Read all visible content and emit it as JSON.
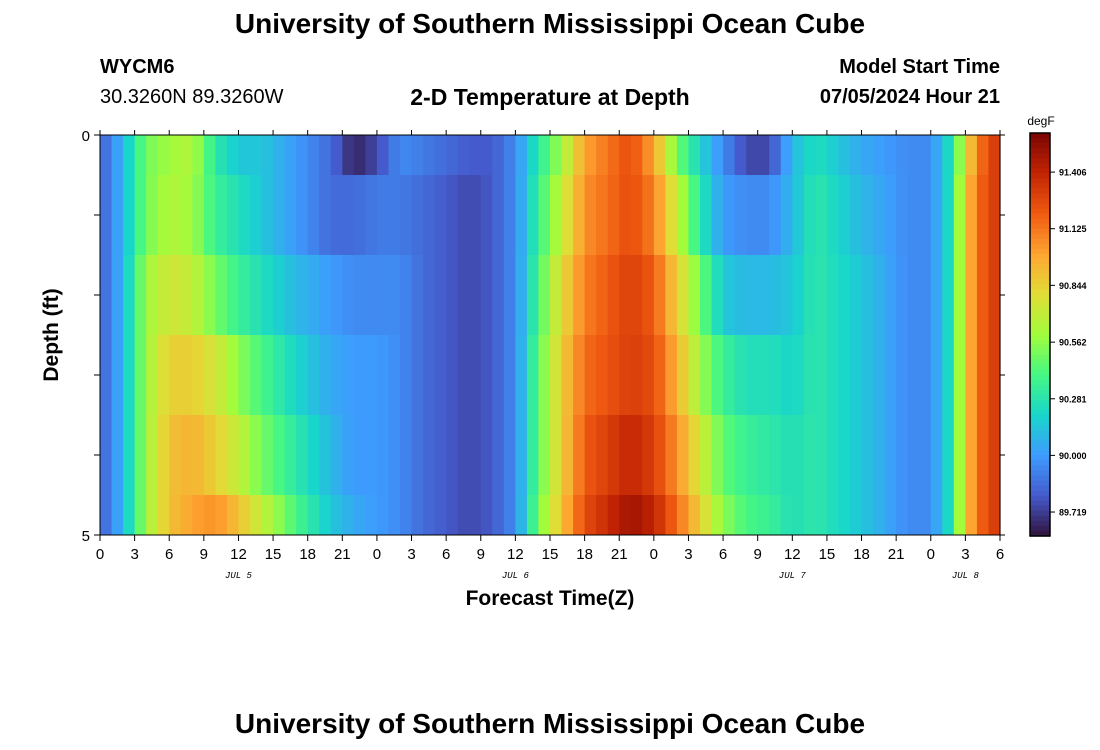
{
  "header": {
    "title": "University of Southern Mississippi Ocean Cube",
    "station": "WYCM6",
    "coords": "30.3260N  89.3260W",
    "subtitle": "2-D Temperature at Depth",
    "model_start_label": "Model Start Time",
    "model_start_value": "07/05/2024 Hour 21"
  },
  "footer": {
    "title": "University of Southern Mississippi Ocean Cube"
  },
  "chart_data": {
    "type": "heatmap",
    "title": "2-D Temperature at Depth",
    "xlabel": "Forecast Time(Z)",
    "ylabel": "Depth (ft)",
    "x_range_hours": [
      0,
      78
    ],
    "x_step_hours": 1,
    "y_range": [
      0,
      5
    ],
    "y_ticks": [
      "0",
      "5"
    ],
    "y_minor_ticks": 4,
    "x_tick_labels": [
      "0",
      "3",
      "6",
      "9",
      "12",
      "15",
      "18",
      "21",
      "0",
      "3",
      "6",
      "9",
      "12",
      "15",
      "18",
      "21",
      "0",
      "3",
      "6",
      "9",
      "12",
      "15",
      "18",
      "21",
      "0",
      "3",
      "6"
    ],
    "day_labels": [
      {
        "text": "JUL 5",
        "hour": 12
      },
      {
        "text": "JUL 6",
        "hour": 36
      },
      {
        "text": "JUL 7",
        "hour": 60
      },
      {
        "text": "JUL 8",
        "hour": 75
      }
    ],
    "colorbar": {
      "units": "degF",
      "min": 89.6,
      "max": 91.6,
      "tick_values": [
        91.406,
        91.125,
        90.844,
        90.562,
        90.281,
        90.0,
        89.719
      ],
      "tick_labels": [
        "91.406",
        "91.125",
        "90.844",
        "90.562",
        "90.281",
        "90.000",
        "89.719"
      ]
    },
    "layers": [
      {
        "depth_range": [
          0,
          0.5
        ],
        "knots": [
          [
            0,
            89.8
          ],
          [
            2,
            90.1
          ],
          [
            4,
            90.5
          ],
          [
            6,
            90.6
          ],
          [
            8,
            90.65
          ],
          [
            10,
            90.3
          ],
          [
            12,
            90.15
          ],
          [
            14,
            90.15
          ],
          [
            17,
            90.0
          ],
          [
            20,
            89.85
          ],
          [
            22,
            89.65
          ],
          [
            24,
            89.75
          ],
          [
            26,
            89.95
          ],
          [
            28,
            89.9
          ],
          [
            32,
            89.8
          ],
          [
            34,
            89.8
          ],
          [
            36,
            89.95
          ],
          [
            38,
            90.3
          ],
          [
            40,
            90.6
          ],
          [
            42,
            91.0
          ],
          [
            46,
            91.25
          ],
          [
            48,
            91.0
          ],
          [
            50,
            90.5
          ],
          [
            52,
            90.2
          ],
          [
            54,
            89.95
          ],
          [
            56,
            89.75
          ],
          [
            58,
            89.75
          ],
          [
            60,
            90.1
          ],
          [
            62,
            90.25
          ],
          [
            66,
            90.05
          ],
          [
            70,
            89.95
          ],
          [
            72,
            89.95
          ],
          [
            74,
            90.3
          ],
          [
            75,
            90.8
          ],
          [
            77,
            91.3
          ],
          [
            78,
            91.3
          ]
        ]
      },
      {
        "depth_range": [
          0.5,
          1.5
        ],
        "knots": [
          [
            0,
            89.8
          ],
          [
            2,
            90.1
          ],
          [
            4,
            90.5
          ],
          [
            6,
            90.65
          ],
          [
            8,
            90.6
          ],
          [
            10,
            90.35
          ],
          [
            12,
            90.25
          ],
          [
            14,
            90.15
          ],
          [
            17,
            90.0
          ],
          [
            20,
            89.85
          ],
          [
            22,
            89.85
          ],
          [
            24,
            89.9
          ],
          [
            26,
            89.9
          ],
          [
            28,
            89.85
          ],
          [
            32,
            89.75
          ],
          [
            34,
            89.8
          ],
          [
            36,
            89.95
          ],
          [
            38,
            90.35
          ],
          [
            40,
            90.7
          ],
          [
            42,
            91.05
          ],
          [
            46,
            91.25
          ],
          [
            48,
            91.1
          ],
          [
            50,
            90.7
          ],
          [
            52,
            90.3
          ],
          [
            54,
            90.0
          ],
          [
            56,
            89.95
          ],
          [
            58,
            89.95
          ],
          [
            60,
            90.1
          ],
          [
            62,
            90.3
          ],
          [
            66,
            90.1
          ],
          [
            70,
            89.95
          ],
          [
            72,
            89.95
          ],
          [
            74,
            90.3
          ],
          [
            75,
            90.9
          ],
          [
            77,
            91.3
          ],
          [
            78,
            91.3
          ]
        ]
      },
      {
        "depth_range": [
          1.5,
          2.5
        ],
        "knots": [
          [
            0,
            89.8
          ],
          [
            2,
            90.1
          ],
          [
            4,
            90.6
          ],
          [
            6,
            90.75
          ],
          [
            8,
            90.7
          ],
          [
            10,
            90.5
          ],
          [
            12,
            90.35
          ],
          [
            14,
            90.25
          ],
          [
            17,
            90.1
          ],
          [
            20,
            90.0
          ],
          [
            22,
            89.95
          ],
          [
            24,
            89.95
          ],
          [
            26,
            89.95
          ],
          [
            28,
            89.85
          ],
          [
            32,
            89.75
          ],
          [
            34,
            89.8
          ],
          [
            36,
            89.95
          ],
          [
            38,
            90.4
          ],
          [
            40,
            90.8
          ],
          [
            42,
            91.1
          ],
          [
            46,
            91.3
          ],
          [
            48,
            91.2
          ],
          [
            50,
            90.85
          ],
          [
            52,
            90.5
          ],
          [
            54,
            90.15
          ],
          [
            56,
            90.1
          ],
          [
            58,
            90.1
          ],
          [
            60,
            90.15
          ],
          [
            62,
            90.3
          ],
          [
            66,
            90.15
          ],
          [
            70,
            89.95
          ],
          [
            72,
            89.95
          ],
          [
            74,
            90.3
          ],
          [
            75,
            90.9
          ],
          [
            77,
            91.3
          ],
          [
            78,
            91.3
          ]
        ]
      },
      {
        "depth_range": [
          2.5,
          3.5
        ],
        "knots": [
          [
            0,
            89.8
          ],
          [
            2,
            90.1
          ],
          [
            4,
            90.6
          ],
          [
            6,
            90.85
          ],
          [
            8,
            90.85
          ],
          [
            10,
            90.75
          ],
          [
            12,
            90.55
          ],
          [
            14,
            90.4
          ],
          [
            17,
            90.2
          ],
          [
            20,
            90.05
          ],
          [
            22,
            90.0
          ],
          [
            24,
            90.0
          ],
          [
            26,
            89.95
          ],
          [
            28,
            89.85
          ],
          [
            32,
            89.75
          ],
          [
            34,
            89.8
          ],
          [
            36,
            89.95
          ],
          [
            38,
            90.45
          ],
          [
            40,
            90.85
          ],
          [
            42,
            91.15
          ],
          [
            46,
            91.3
          ],
          [
            48,
            91.25
          ],
          [
            50,
            90.95
          ],
          [
            52,
            90.6
          ],
          [
            54,
            90.35
          ],
          [
            56,
            90.25
          ],
          [
            58,
            90.25
          ],
          [
            60,
            90.2
          ],
          [
            62,
            90.3
          ],
          [
            66,
            90.15
          ],
          [
            70,
            89.95
          ],
          [
            72,
            89.95
          ],
          [
            74,
            90.3
          ],
          [
            75,
            90.9
          ],
          [
            77,
            91.3
          ],
          [
            78,
            91.3
          ]
        ]
      },
      {
        "depth_range": [
          3.5,
          4.5
        ],
        "knots": [
          [
            0,
            89.8
          ],
          [
            2,
            90.1
          ],
          [
            4,
            90.6
          ],
          [
            6,
            90.9
          ],
          [
            8,
            90.95
          ],
          [
            10,
            90.85
          ],
          [
            12,
            90.7
          ],
          [
            14,
            90.5
          ],
          [
            17,
            90.3
          ],
          [
            20,
            90.1
          ],
          [
            22,
            90.0
          ],
          [
            24,
            90.0
          ],
          [
            26,
            89.95
          ],
          [
            28,
            89.85
          ],
          [
            32,
            89.75
          ],
          [
            34,
            89.8
          ],
          [
            36,
            89.95
          ],
          [
            38,
            90.45
          ],
          [
            40,
            90.85
          ],
          [
            42,
            91.2
          ],
          [
            46,
            91.4
          ],
          [
            48,
            91.3
          ],
          [
            50,
            91.05
          ],
          [
            52,
            90.75
          ],
          [
            54,
            90.45
          ],
          [
            56,
            90.35
          ],
          [
            58,
            90.3
          ],
          [
            60,
            90.25
          ],
          [
            62,
            90.3
          ],
          [
            66,
            90.15
          ],
          [
            70,
            89.95
          ],
          [
            72,
            89.95
          ],
          [
            74,
            90.3
          ],
          [
            75,
            90.9
          ],
          [
            77,
            91.3
          ],
          [
            78,
            91.3
          ]
        ]
      },
      {
        "depth_range": [
          4.5,
          5.0
        ],
        "knots": [
          [
            0,
            89.8
          ],
          [
            2,
            90.1
          ],
          [
            4,
            90.6
          ],
          [
            6,
            90.9
          ],
          [
            8,
            91.0
          ],
          [
            10,
            91.05
          ],
          [
            12,
            90.9
          ],
          [
            14,
            90.7
          ],
          [
            17,
            90.4
          ],
          [
            20,
            90.15
          ],
          [
            22,
            90.05
          ],
          [
            24,
            90.0
          ],
          [
            26,
            89.95
          ],
          [
            28,
            89.85
          ],
          [
            32,
            89.75
          ],
          [
            34,
            89.8
          ],
          [
            36,
            89.95
          ],
          [
            38,
            90.5
          ],
          [
            40,
            90.9
          ],
          [
            42,
            91.25
          ],
          [
            46,
            91.5
          ],
          [
            48,
            91.4
          ],
          [
            50,
            91.15
          ],
          [
            52,
            90.85
          ],
          [
            54,
            90.55
          ],
          [
            56,
            90.4
          ],
          [
            58,
            90.35
          ],
          [
            60,
            90.25
          ],
          [
            62,
            90.3
          ],
          [
            66,
            90.15
          ],
          [
            70,
            89.95
          ],
          [
            72,
            89.95
          ],
          [
            74,
            90.3
          ],
          [
            75,
            90.9
          ],
          [
            77,
            91.3
          ],
          [
            78,
            91.3
          ]
        ]
      }
    ]
  }
}
